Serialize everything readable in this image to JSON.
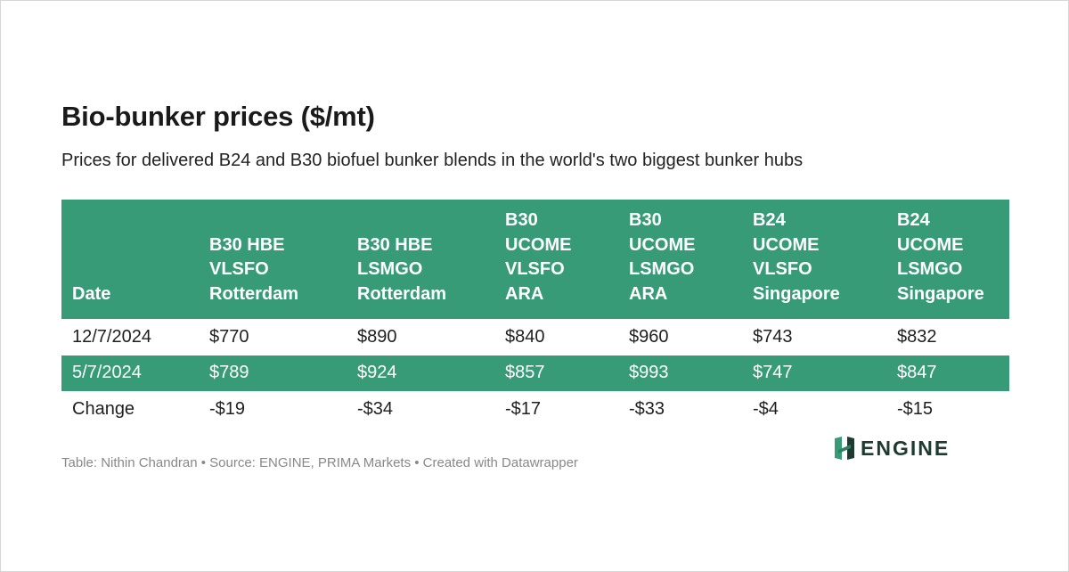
{
  "chart_data": {
    "type": "table",
    "title": "Bio-bunker prices ($/mt)",
    "subtitle": "Prices for delivered B24 and B30 biofuel bunker blends in the world's two biggest bunker hubs",
    "columns": [
      [
        "Date"
      ],
      [
        "B30 HBE",
        "VLSFO",
        "Rotterdam"
      ],
      [
        "B30 HBE",
        "LSMGO",
        "Rotterdam"
      ],
      [
        "B30",
        "UCOME",
        "VLSFO",
        "ARA"
      ],
      [
        "B30",
        "UCOME",
        "LSMGO",
        "ARA"
      ],
      [
        "B24",
        "UCOME",
        "VLSFO",
        "Singapore"
      ],
      [
        "B24",
        "UCOME",
        "LSMGO",
        "Singapore"
      ]
    ],
    "rows": [
      [
        "12/7/2024",
        "$770",
        "$890",
        "$840",
        "$960",
        "$743",
        "$832"
      ],
      [
        "5/7/2024",
        "$789",
        "$924",
        "$857",
        "$993",
        "$747",
        "$847"
      ],
      [
        "Change",
        "-$19",
        "-$34",
        "-$17",
        "-$33",
        "-$4",
        "-$15"
      ]
    ],
    "footer": "Table: Nithin Chandran • Source: ENGINE, PRIMA Markets • Created with Datawrapper"
  },
  "logo": {
    "text": "ENGINE",
    "icon": "engine-logo-icon",
    "color": "#1e3a31",
    "accent": "#389b78"
  },
  "colors": {
    "header_bg": "#389b78",
    "alt_row_bg": "#389b78",
    "text": "#1f1f1f",
    "footer_text": "#888888"
  }
}
